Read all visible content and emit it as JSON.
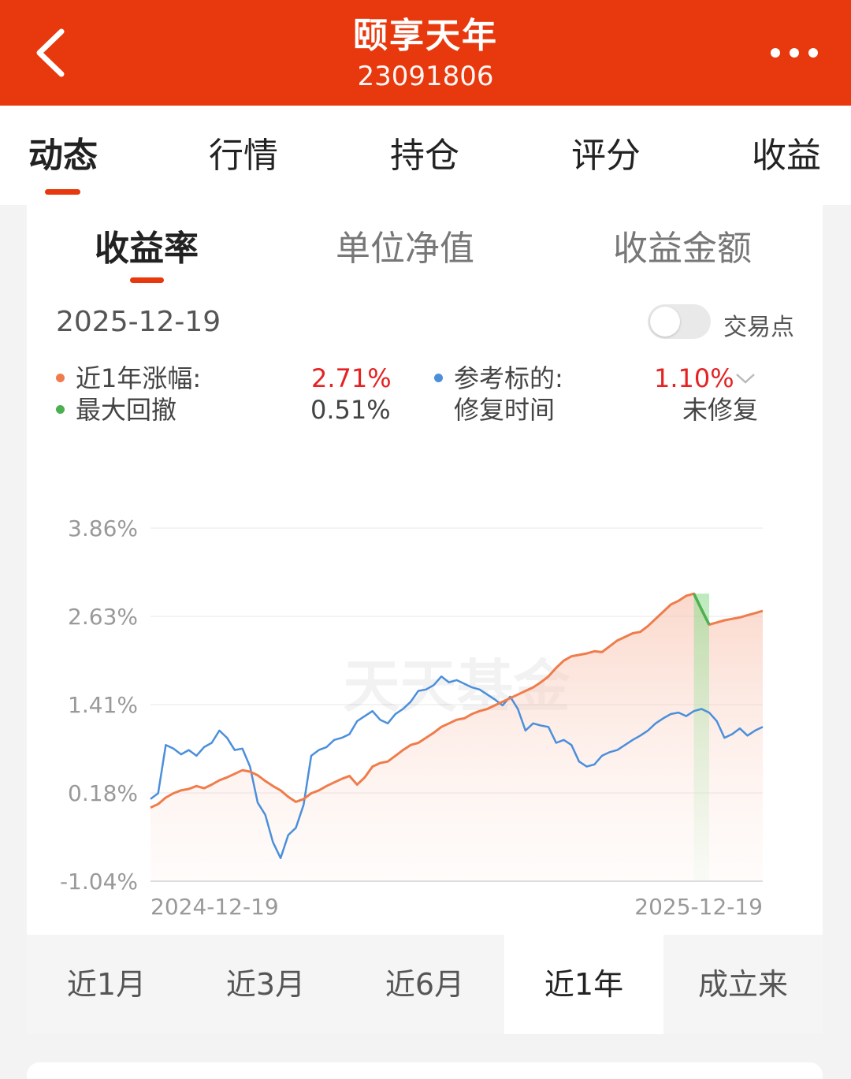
{
  "header": {
    "title": "颐享天年",
    "code": "23091806",
    "back_icon": "chevron-left-icon",
    "more_icon": "more-horizontal-icon"
  },
  "main_tabs": [
    {
      "label": "动态",
      "active": true
    },
    {
      "label": "行情",
      "active": false
    },
    {
      "label": "持仓",
      "active": false
    },
    {
      "label": "评分",
      "active": false
    },
    {
      "label": "收益",
      "active": false
    }
  ],
  "sub_tabs": [
    {
      "label": "收益率",
      "active": true
    },
    {
      "label": "单位净值",
      "active": false
    },
    {
      "label": "收益金额",
      "active": false
    }
  ],
  "date": "2025-12-19",
  "trade_points": {
    "label": "交易点",
    "on": false
  },
  "stats": {
    "return_label": "近1年涨幅:",
    "return_value": "2.71%",
    "benchmark_label": "参考标的:",
    "benchmark_value": "1.10%",
    "drawdown_label": "最大回撤",
    "drawdown_value": "0.51%",
    "recovery_label": "修复时间",
    "recovery_value": "未修复"
  },
  "colors": {
    "brand": "#e8380d",
    "fund_line": "#f07c4b",
    "benchmark_line": "#4b8fdb",
    "drawdown": "#4caf50",
    "positive": "#e52222"
  },
  "watermark": "天天基金",
  "chart_data": {
    "type": "line",
    "x_start": "2024-12-19",
    "x_end": "2025-12-19",
    "y_ticks": [
      "3.86%",
      "2.63%",
      "1.41%",
      "0.18%",
      "-1.04%"
    ],
    "ylim": [
      -1.04,
      3.86
    ],
    "series": [
      {
        "name": "近1年涨幅",
        "values": [
          -0.02,
          0.03,
          0.12,
          0.18,
          0.22,
          0.24,
          0.28,
          0.25,
          0.3,
          0.36,
          0.4,
          0.45,
          0.5,
          0.48,
          0.43,
          0.35,
          0.28,
          0.22,
          0.13,
          0.06,
          0.1,
          0.18,
          0.22,
          0.28,
          0.33,
          0.38,
          0.42,
          0.3,
          0.4,
          0.55,
          0.6,
          0.62,
          0.7,
          0.78,
          0.85,
          0.88,
          0.95,
          1.02,
          1.1,
          1.15,
          1.2,
          1.22,
          1.28,
          1.32,
          1.35,
          1.4,
          1.45,
          1.5,
          1.55,
          1.6,
          1.65,
          1.72,
          1.8,
          1.92,
          2.02,
          2.08,
          2.1,
          2.12,
          2.15,
          2.14,
          2.22,
          2.3,
          2.35,
          2.4,
          2.42,
          2.5,
          2.6,
          2.7,
          2.8,
          2.85,
          2.92,
          2.95,
          2.73,
          2.52,
          2.55,
          2.58,
          2.6,
          2.62,
          2.65,
          2.68,
          2.71
        ]
      },
      {
        "name": "参考标的",
        "values": [
          0.1,
          0.18,
          0.85,
          0.8,
          0.72,
          0.78,
          0.7,
          0.82,
          0.88,
          1.05,
          0.95,
          0.78,
          0.8,
          0.55,
          0.05,
          -0.12,
          -0.5,
          -0.72,
          -0.4,
          -0.3,
          0.02,
          0.7,
          0.78,
          0.82,
          0.92,
          0.95,
          1.0,
          1.18,
          1.25,
          1.32,
          1.2,
          1.15,
          1.28,
          1.35,
          1.45,
          1.6,
          1.62,
          1.68,
          1.8,
          1.72,
          1.75,
          1.7,
          1.65,
          1.62,
          1.55,
          1.48,
          1.4,
          1.52,
          1.35,
          1.05,
          1.15,
          1.12,
          1.1,
          0.88,
          0.92,
          0.85,
          0.62,
          0.55,
          0.58,
          0.7,
          0.75,
          0.78,
          0.85,
          0.92,
          0.98,
          1.05,
          1.15,
          1.22,
          1.28,
          1.3,
          1.25,
          1.32,
          1.35,
          1.3,
          1.18,
          0.95,
          1.0,
          1.08,
          0.98,
          1.05,
          1.1
        ]
      }
    ],
    "drawdown_range_index": [
      71,
      73
    ]
  },
  "periods": [
    {
      "label": "近1月",
      "active": false
    },
    {
      "label": "近3月",
      "active": false
    },
    {
      "label": "近6月",
      "active": false
    },
    {
      "label": "近1年",
      "active": true
    },
    {
      "label": "成立来",
      "active": false
    }
  ]
}
